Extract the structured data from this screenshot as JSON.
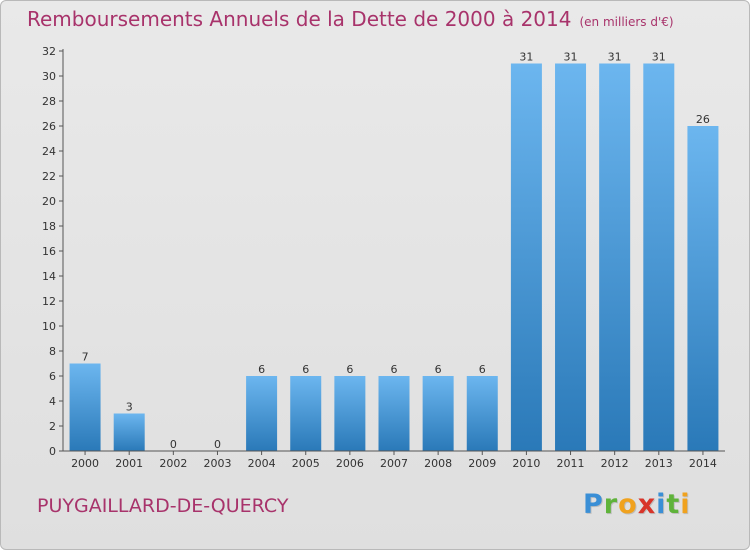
{
  "header": {
    "title": "Remboursements Annuels de la Dette de 2000 à 2014",
    "unit": "(en milliers d'€)"
  },
  "footer": {
    "commune": "PUYGAILLARD-DE-QUERCY",
    "brand_letters": [
      "P",
      "r",
      "o",
      "x",
      "i",
      "t",
      "i"
    ],
    "brand_colors": [
      "#3a8fd6",
      "#5fb33a",
      "#f0a21e",
      "#d8352a",
      "#3a8fd6",
      "#5fb33a",
      "#f0a21e"
    ]
  },
  "colors": {
    "bar_light": "#6cb6ef",
    "bar_dark": "#2a79b8",
    "accent": "#a8336b"
  },
  "chart_data": {
    "type": "bar",
    "title": "Remboursements Annuels de la Dette de 2000 à 2014",
    "categories": [
      "2000",
      "2001",
      "2002",
      "2003",
      "2004",
      "2005",
      "2006",
      "2007",
      "2008",
      "2009",
      "2010",
      "2011",
      "2012",
      "2013",
      "2014"
    ],
    "values": [
      7,
      3,
      0,
      0,
      6,
      6,
      6,
      6,
      6,
      6,
      31,
      31,
      31,
      31,
      26
    ],
    "data_labels": [
      "7",
      "3",
      "0",
      "0",
      "6",
      "6",
      "6",
      "6",
      "6",
      "6",
      "31",
      "31",
      "31",
      "31",
      "26"
    ],
    "yticks": [
      0,
      2,
      4,
      6,
      8,
      10,
      12,
      14,
      16,
      18,
      20,
      22,
      24,
      26,
      28,
      30,
      32
    ],
    "ylim": [
      0,
      32
    ],
    "grid": false,
    "legend": "none"
  }
}
